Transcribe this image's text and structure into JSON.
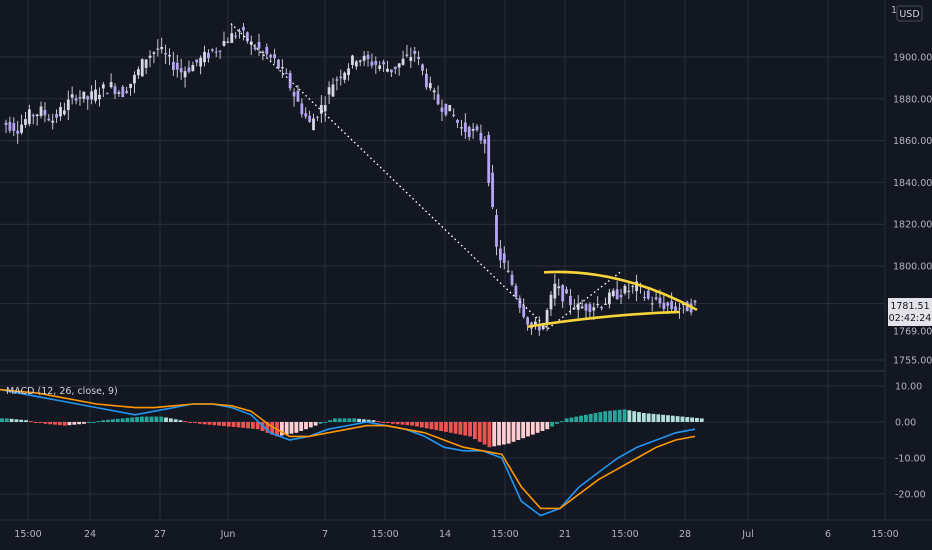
{
  "colors": {
    "background": "#131722",
    "grid": "#2a2e39",
    "candle": "#b7a4f4",
    "candle_wick": "#d9d9e6",
    "trendline": "#ffffff",
    "channel": "#f7d43a",
    "macd_line": "#2196f3",
    "signal_line": "#ff9800",
    "hist_pos_strong": "#26a69a",
    "hist_pos_weak": "#b2dfdb",
    "hist_neg_strong": "#ef5350",
    "hist_neg_weak": "#ffcdd2",
    "axis_text": "#b2b5be"
  },
  "header": {
    "currency_badge": "USD",
    "price_axis_top_fragments": [
      "1",
      "0"
    ]
  },
  "macd_panel": {
    "label": "MACD (12, 26, close, 9)"
  },
  "last_price": {
    "price": "1781.51",
    "countdown": "02:42:24"
  },
  "chart_data": [
    {
      "type": "candlestick",
      "y_axis": {
        "ticks": [
          "1900.00",
          "1880.00",
          "1860.00",
          "1840.00",
          "1820.00",
          "1800.00",
          "1769.00",
          "1755.00"
        ]
      },
      "x_axis": {
        "ticks": [
          "15:00",
          "24",
          "27",
          "Jun",
          "7",
          "15:00",
          "14",
          "15:00",
          "21",
          "15:00",
          "28",
          "Jul",
          "6",
          "15:00"
        ]
      },
      "approx_close_series": [
        1868,
        1866,
        1872,
        1874,
        1870,
        1876,
        1882,
        1880,
        1884,
        1886,
        1883,
        1890,
        1900,
        1904,
        1898,
        1893,
        1896,
        1900,
        1904,
        1909,
        1912,
        1906,
        1902,
        1898,
        1890,
        1878,
        1868,
        1876,
        1888,
        1894,
        1900,
        1898,
        1896,
        1894,
        1898,
        1902,
        1888,
        1878,
        1874,
        1866,
        1864,
        1860,
        1808,
        1796,
        1782,
        1770,
        1772,
        1790,
        1784,
        1780,
        1781,
        1782,
        1786,
        1788,
        1790,
        1784,
        1782,
        1780,
        1780,
        1781
      ],
      "annotations": [
        {
          "type": "trendline-dotted",
          "from_price": 1916,
          "to_price": 1770
        },
        {
          "type": "channel-upper",
          "start_price": 1797,
          "end_price": 1779
        },
        {
          "type": "channel-lower",
          "start_price": 1771,
          "end_price": 1778
        }
      ]
    },
    {
      "type": "macd",
      "y_axis": {
        "ticks": [
          "10.00",
          "0.00",
          "-10.00",
          "-20.00"
        ],
        "ylim": [
          -27,
          12
        ]
      },
      "macd_line": [
        9,
        8,
        7,
        6,
        5,
        4,
        3,
        2,
        3,
        4,
        5,
        5,
        4,
        2,
        -3,
        -5,
        -4,
        -2,
        -1,
        0,
        -1,
        -2,
        -4,
        -7,
        -8,
        -8,
        -10,
        -22,
        -26,
        -24,
        -18,
        -14,
        -10,
        -7,
        -5,
        -3,
        -2
      ],
      "signal_line": [
        9,
        8.5,
        8,
        7,
        6,
        5,
        4.5,
        4,
        4,
        4.5,
        5,
        5,
        4.5,
        3,
        -1,
        -4,
        -4,
        -3,
        -2,
        -1,
        -1,
        -2,
        -3,
        -5,
        -7,
        -8,
        -9,
        -18,
        -24,
        -24,
        -20,
        -16,
        -13,
        -10,
        -7,
        -5,
        -4
      ],
      "histogram": [
        1,
        0.5,
        -0.5,
        -1,
        -0.5,
        0.5,
        1,
        1.5,
        1.5,
        0.5,
        -0.5,
        -1,
        -1.5,
        -2,
        -4,
        -3,
        -1,
        1,
        1,
        0.5,
        -0.5,
        -1,
        -2,
        -3,
        -4,
        -7,
        -6,
        -4,
        -2,
        1,
        2,
        3,
        3.5,
        2.5,
        2,
        1.5,
        1
      ]
    }
  ]
}
